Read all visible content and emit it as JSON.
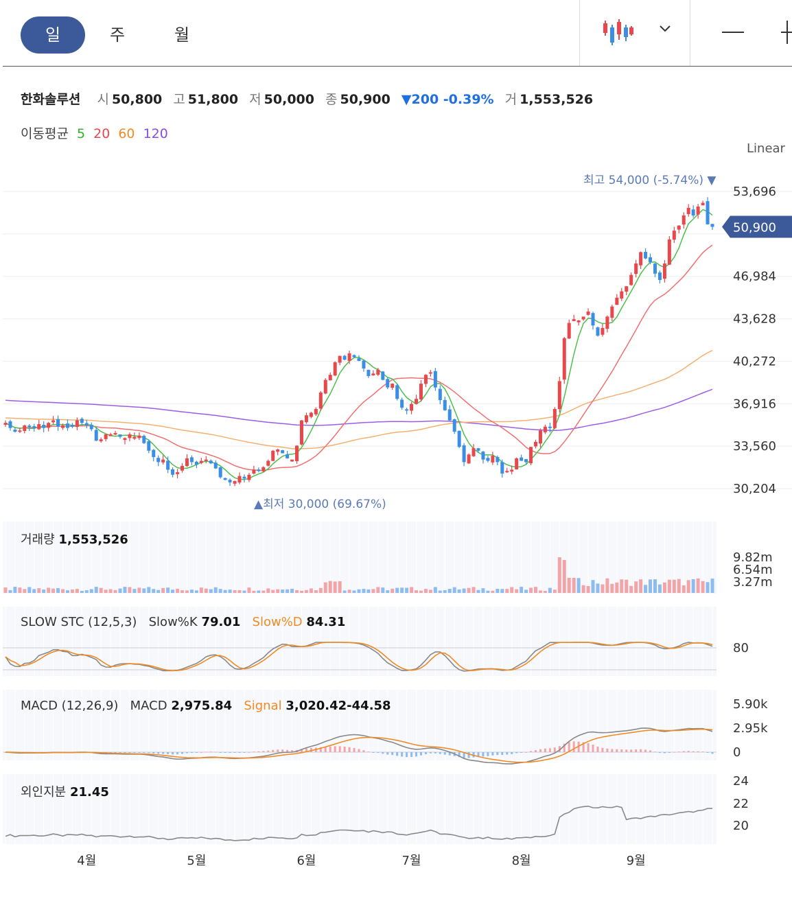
{
  "toolbar": {
    "periods": [
      "일",
      "주",
      "월"
    ],
    "active_period": "일"
  },
  "stock": {
    "name": "한화솔루션",
    "open_label": "시",
    "open": "50,800",
    "high_label": "고",
    "high": "51,800",
    "low_label": "저",
    "low": "50,000",
    "close_label": "종",
    "close": "50,900",
    "change": "▼200 -0.39%",
    "volume_label": "거",
    "volume": "1,553,526"
  },
  "moving_average": {
    "label": "이동평균",
    "periods": [
      {
        "value": "5",
        "color": "#2fb12f"
      },
      {
        "value": "20",
        "color": "#e8474c"
      },
      {
        "value": "60",
        "color": "#f08a24"
      },
      {
        "value": "120",
        "color": "#8a4de0"
      }
    ]
  },
  "scale_label": "Linear",
  "colors": {
    "up": "#e8474c",
    "down": "#3a8ee6",
    "badge": "#3c5a99",
    "ma5": "#4cc04c",
    "ma20": "#f07070",
    "ma60": "#f5b070",
    "ma120": "#9b5de5",
    "annotation": "#5a7ab8"
  },
  "chart_data": {
    "type": "candlestick",
    "price_axis_ticks": [
      "53,696",
      "46,984",
      "43,628",
      "40,272",
      "36,916",
      "33,560",
      "30,204"
    ],
    "current_price_badge": "50,900",
    "high_annotation": {
      "label": "최고",
      "value": "54,000 (-5.74%)"
    },
    "low_annotation": {
      "label": "최저",
      "value": "30,000 (69.67%)"
    },
    "x_tick_labels": [
      "4월",
      "5월",
      "6월",
      "7월",
      "8월",
      "9월"
    ],
    "candles_close": [
      35400,
      35000,
      34700,
      34800,
      35200,
      35100,
      35000,
      35300,
      35000,
      35400,
      35600,
      35100,
      35200,
      35000,
      35100,
      35600,
      35400,
      35200,
      34900,
      34000,
      34100,
      34500,
      34500,
      34600,
      34300,
      34200,
      34500,
      34300,
      34400,
      33800,
      33200,
      32700,
      32300,
      32500,
      31700,
      31300,
      31500,
      32000,
      32600,
      32300,
      32100,
      32400,
      32500,
      32200,
      31800,
      31100,
      30900,
      30700,
      30800,
      31200,
      31000,
      31300,
      31700,
      31600,
      31900,
      32400,
      33200,
      33300,
      33000,
      32600,
      32500,
      33600,
      35600,
      36000,
      36200,
      36500,
      37800,
      38800,
      39200,
      40200,
      40700,
      40400,
      40900,
      40600,
      40300,
      39700,
      39100,
      39300,
      39600,
      38800,
      38200,
      38500,
      37300,
      36600,
      36400,
      36900,
      37300,
      38500,
      39200,
      39400,
      38200,
      37200,
      36400,
      35600,
      34700,
      33500,
      32300,
      32900,
      33400,
      33200,
      32500,
      32400,
      32800,
      32300,
      31400,
      31600,
      31700,
      32600,
      32400,
      32300,
      33500,
      33900,
      34800,
      35100,
      35000,
      36500,
      38700,
      42100,
      43300,
      43600,
      43500,
      43800,
      44200,
      43100,
      42300,
      42900,
      43800,
      44600,
      45300,
      45800,
      46200,
      47100,
      48000,
      48900,
      48400,
      48100,
      47200,
      46700,
      48000,
      49900,
      50600,
      51000,
      51800,
      52400,
      51800,
      52500,
      52800,
      51100,
      50900
    ],
    "ma_note": "",
    "volume": {
      "label": "거래량",
      "value": "1,553,526",
      "ticks": [
        "9.82m",
        "6.54m",
        "3.27m"
      ]
    },
    "slow_stc": {
      "label": "SLOW STC (12,5,3)",
      "k_label": "Slow%K",
      "k_value": "79.01",
      "d_label": "Slow%D",
      "d_value": "84.31",
      "ticks": [
        "80"
      ]
    },
    "macd": {
      "label": "MACD (12,26,9)",
      "macd_label": "MACD",
      "macd_value": "2,975.84",
      "signal_label": "Signal",
      "signal_value": "3,020.42",
      "osc_value": "-44.58",
      "ticks": [
        "5.90k",
        "2.95k",
        "0"
      ]
    },
    "foreign": {
      "label": "외인지분",
      "value": "21.45",
      "ticks": [
        "24",
        "22",
        "20"
      ]
    }
  }
}
